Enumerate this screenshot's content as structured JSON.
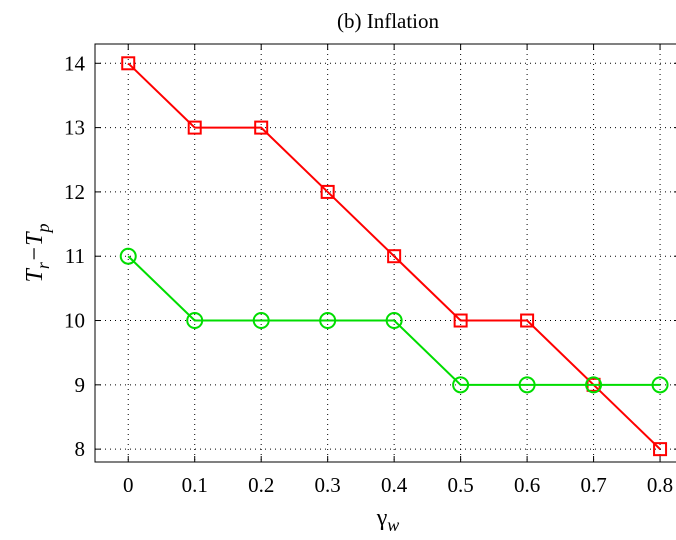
{
  "chart_data": {
    "type": "line",
    "title": "(b) Inflation",
    "xlabel": {
      "main": "γ",
      "sub": "w"
    },
    "ylabel": {
      "parts": [
        "T",
        "r",
        "−T",
        "p"
      ]
    },
    "x": [
      0,
      0.1,
      0.2,
      0.3,
      0.4,
      0.5,
      0.6,
      0.7,
      0.8
    ],
    "xticks": [
      "0",
      "0.1",
      "0.2",
      "0.3",
      "0.4",
      "0.5",
      "0.6",
      "0.7",
      "0.8"
    ],
    "yticks": [
      "8",
      "9",
      "10",
      "11",
      "12",
      "13",
      "14"
    ],
    "xlim": [
      -0.05,
      0.83
    ],
    "ylim": [
      7.8,
      14.3
    ],
    "grid": true,
    "series": [
      {
        "marker": "square",
        "color": "#ff0000",
        "values": [
          14,
          13,
          13,
          12,
          11,
          10,
          10,
          9,
          8
        ]
      },
      {
        "marker": "circle",
        "color": "#00dd00",
        "values": [
          11,
          10,
          10,
          10,
          10,
          9,
          9,
          9,
          9
        ]
      }
    ]
  }
}
